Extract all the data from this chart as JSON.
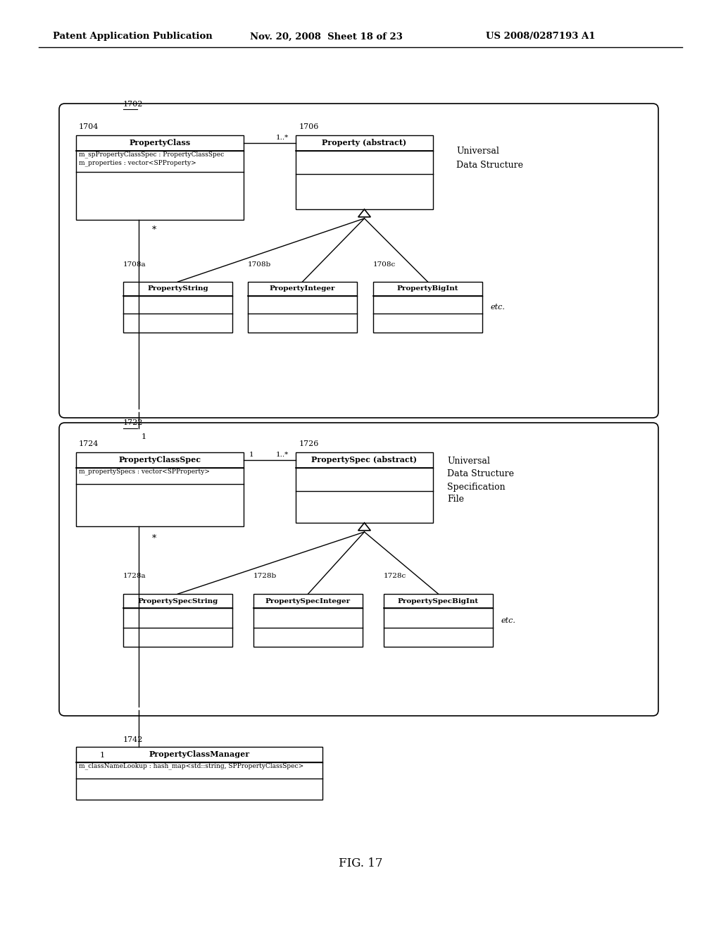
{
  "header_left": "Patent Application Publication",
  "header_mid": "Nov. 20, 2008  Sheet 18 of 23",
  "header_right": "US 2008/0287193 A1",
  "fig_label": "FIG. 17",
  "bg_color": "#ffffff",
  "box1702_label": "1702",
  "box1704_label": "1704",
  "box1706_label": "1706",
  "box1708a_label": "1708a",
  "box1708b_label": "1708b",
  "box1708c_label": "1708c",
  "box1722_label": "1722",
  "box1724_label": "1724",
  "box1726_label": "1726",
  "box1728a_label": "1728a",
  "box1728b_label": "1728b",
  "box1728c_label": "1728c",
  "box1742_label": "1742",
  "class1_title": "PropertyClass",
  "class1_attr1": "m_spPropertyClassSpec : PropertyClassSpec",
  "class1_attr2": "m_properties : vector<SPProperty>",
  "class2_title": "Property (abstract)",
  "class3_title": "PropertyString",
  "class4_title": "PropertyInteger",
  "class5_title": "PropertyBigInt",
  "class6_title": "PropertyClassSpec",
  "class6_attr1": "m_propertySpecs : vector<SPProperty>",
  "class7_title": "PropertySpec (abstract)",
  "class8_title": "PropertySpecString",
  "class9_title": "PropertySpecInteger",
  "class10_title": "PropertySpecBigInt",
  "class11_title": "PropertyClassManager",
  "class11_attr1": "m_classNameLookup : hash_map<std::string, SPPropertyClassSpec>",
  "label_uds1": "Universal",
  "label_uds2": "Data Structure",
  "label_udssf1": "Universal",
  "label_udssf2": "Data Structure",
  "label_udssf3": "Specification",
  "label_udssf4": "File",
  "label_etc1": "etc.",
  "label_etc2": "etc.",
  "assoc_1star": "1..*",
  "assoc_star": "*",
  "assoc_1": "1",
  "assoc_1b": "1"
}
